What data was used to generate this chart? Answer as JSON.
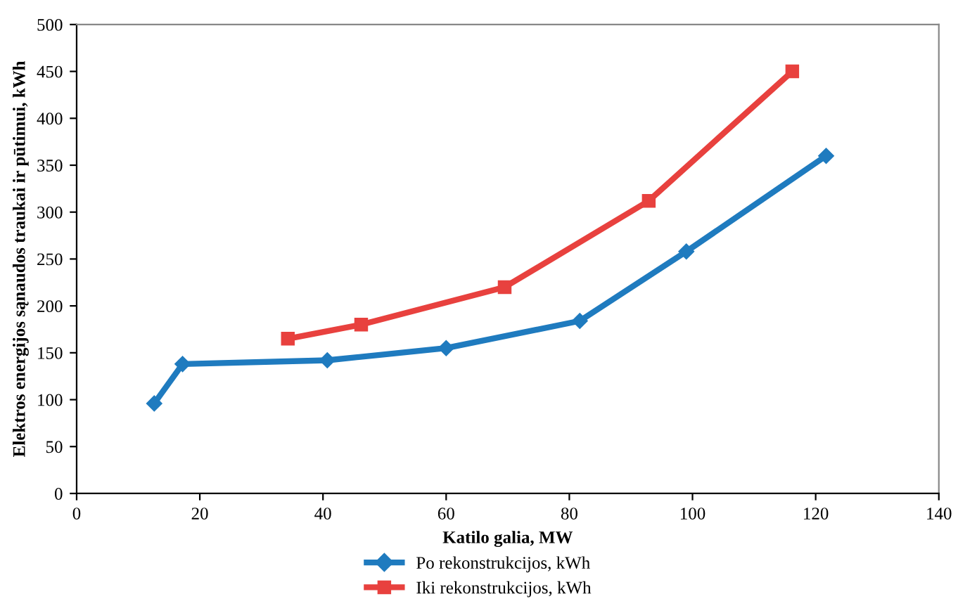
{
  "chart_data": {
    "type": "line",
    "xlabel": "Katilo galia, MW",
    "ylabel": "Elektros energijos sąnaudos traukai ir pūtimui, kWh",
    "xlim": [
      0,
      140
    ],
    "xticks": [
      0,
      20,
      40,
      60,
      80,
      100,
      120,
      140
    ],
    "ylim": [
      0,
      500
    ],
    "yticks": [
      0,
      50,
      100,
      150,
      200,
      250,
      300,
      350,
      400,
      450,
      500
    ],
    "grid": false,
    "legend": "bottom",
    "series": [
      {
        "name": "Po rekonstrukcijos, kWh",
        "color": "#1f7bbf",
        "marker": "diamond",
        "x": [
          12.6,
          17.2,
          40.7,
          60,
          81.7,
          99,
          121.7
        ],
        "values": [
          96,
          138,
          142,
          155,
          184,
          258,
          360
        ]
      },
      {
        "name": "Iki rekonstrukcijos, kWh",
        "color": "#e8413e",
        "marker": "square",
        "x": [
          34.3,
          46.2,
          69.5,
          92.9,
          116.2
        ],
        "values": [
          165,
          180,
          220,
          312,
          450
        ]
      }
    ]
  }
}
